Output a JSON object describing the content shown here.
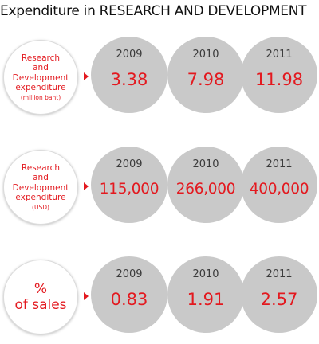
{
  "title": "Expenditure in RESEARCH AND DEVELOPMENT",
  "chart_data": [
    {
      "type": "table",
      "label_lines": [
        "Research",
        "and",
        "Development",
        "expenditure"
      ],
      "label_note": "(million baht)",
      "categories": [
        "2009",
        "2010",
        "2011"
      ],
      "values": [
        3.38,
        7.98,
        11.98
      ],
      "value_labels": [
        "3.38",
        "7.98",
        "11.98"
      ]
    },
    {
      "type": "table",
      "label_lines": [
        "Research",
        "and",
        "Development",
        "expenditure"
      ],
      "label_note": "(USD)",
      "categories": [
        "2009",
        "2010",
        "2011"
      ],
      "values": [
        115000,
        266000,
        400000
      ],
      "value_labels": [
        "115,000",
        "266,000",
        "400,000"
      ]
    },
    {
      "type": "table",
      "label_lines": [
        "%",
        "of sales"
      ],
      "label_note": "",
      "categories": [
        "2009",
        "2010",
        "2011"
      ],
      "values": [
        0.83,
        1.91,
        2.57
      ],
      "value_labels": [
        "0.83",
        "1.91",
        "2.57"
      ]
    }
  ],
  "colors": {
    "accent": "#e3191f",
    "circle": "#c9c9c9",
    "year_text": "#3a3a3a"
  }
}
